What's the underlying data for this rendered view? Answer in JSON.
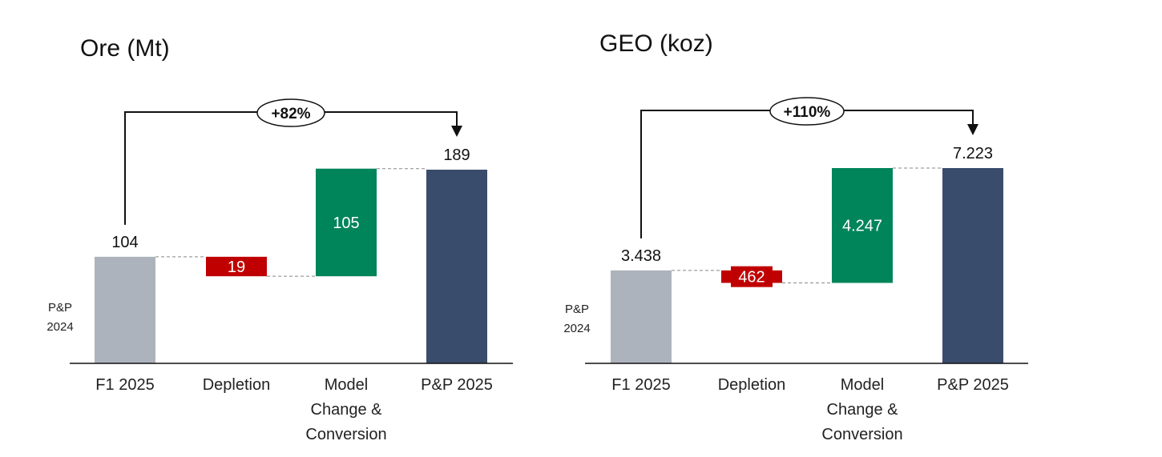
{
  "chart_data": [
    {
      "type": "waterfall",
      "title": "Ore (Mt)",
      "categories": [
        "F1 2025",
        "Depletion",
        "Model Change & Conversion",
        "P&P 2025"
      ],
      "category_lines": [
        [
          "F1 2025"
        ],
        [
          "Depletion"
        ],
        [
          "Model",
          "Change &",
          "Conversion"
        ],
        [
          "P&P 2025"
        ]
      ],
      "values": [
        104,
        -19,
        105,
        189
      ],
      "value_labels": [
        "104",
        "19",
        "105",
        "189"
      ],
      "kinds": [
        "total",
        "decrease",
        "increase",
        "total"
      ],
      "side_label": [
        "P&P",
        "2024"
      ],
      "change_label": "+82%",
      "ylim": [
        0,
        189
      ],
      "colors": {
        "start": "#adb3bc",
        "decrease": "#c00000",
        "increase": "#00845a",
        "end": "#3a4c6b"
      }
    },
    {
      "type": "waterfall",
      "title": "GEO (koz)",
      "categories": [
        "F1 2025",
        "Depletion",
        "Model Change & Conversion",
        "P&P 2025"
      ],
      "category_lines": [
        [
          "F1 2025"
        ],
        [
          "Depletion"
        ],
        [
          "Model",
          "Change &",
          "Conversion"
        ],
        [
          "P&P 2025"
        ]
      ],
      "values": [
        3438,
        -462,
        4247,
        7223
      ],
      "value_labels": [
        "3.438",
        "462",
        "4.247",
        "7.223"
      ],
      "kinds": [
        "total",
        "decrease",
        "increase",
        "total"
      ],
      "side_label": [
        "P&P",
        "2024"
      ],
      "change_label": "+110%",
      "ylim": [
        0,
        7223
      ],
      "colors": {
        "start": "#adb3bc",
        "decrease": "#c00000",
        "increase": "#00845a",
        "end": "#3a4c6b"
      }
    }
  ]
}
